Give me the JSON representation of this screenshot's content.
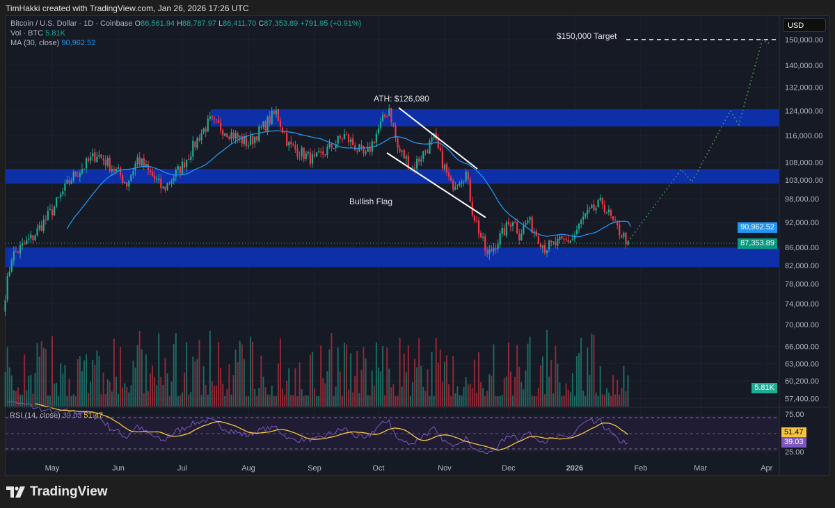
{
  "credit": "TimHakki created with TradingView.com, Jan 26, 2026 17:26 UTC",
  "legend": {
    "symbol": "Bitcoin / U.S. Dollar · 1D · Coinbase",
    "open_label": "O",
    "open": "86,561.94",
    "high_label": "H",
    "high": "88,787.97",
    "low_label": "L",
    "low": "86,411.70",
    "close_label": "C",
    "close": "87,353.89",
    "change": "+791.95 (+0.91%)",
    "vol_label": "Vol · BTC",
    "vol": "5.81K",
    "ma_label": "MA (30, close)",
    "ma": "90,962.52",
    "rsi_label": "RSI (14, close)",
    "rsi": "39.03",
    "rsi_ma": "51.47"
  },
  "currency_button": "USD",
  "price_axis": [
    "150,000.00",
    "140,000.00",
    "132,000.00",
    "124,000.00",
    "116,000.00",
    "108,000.00",
    "103,000.00",
    "98,000.00",
    "92,000.00",
    "86,000.00",
    "82,000.00",
    "78,000.00",
    "74,000.00",
    "70,000.00",
    "66,000.00",
    "63,000.00",
    "60,200.00",
    "57,400.00"
  ],
  "price_axis_values": [
    150000,
    140000,
    132000,
    124000,
    116000,
    108000,
    103000,
    98000,
    92000,
    86000,
    82000,
    78000,
    74000,
    70000,
    66000,
    63000,
    60200,
    57400
  ],
  "rsi_axis": [
    "75.00",
    "25.00"
  ],
  "tags": {
    "ma": "90,962.52",
    "price": "87,353.89",
    "vol": "5.81K",
    "rsi_ma": "51.47",
    "rsi": "39.03"
  },
  "time_axis": [
    "May",
    "Jun",
    "Jul",
    "Aug",
    "Sep",
    "Oct",
    "Nov",
    "Dec",
    "2026",
    "Feb",
    "Mar",
    "Apr"
  ],
  "annotations": {
    "ath": "ATH: $126,080",
    "flag": "Bullish Flag",
    "target": "$150,000 Target"
  },
  "zones": [
    [
      118900,
      124500
    ],
    [
      102000,
      106100
    ],
    [
      81600,
      86000
    ]
  ],
  "colors": {
    "up": "#22ab94",
    "down": "#f23645",
    "ma": "#2196f3",
    "zone": "#0d2fa8",
    "rsi": "#7e57c2",
    "rsi_ma": "#f5c542",
    "projection": "#4caf50"
  },
  "chart_data": {
    "type": "candlestick",
    "scale": "log",
    "ylim": [
      57400,
      152000
    ],
    "price_path": [
      [
        "2025-04-09",
        76000
      ],
      [
        "2025-04-12",
        84000
      ],
      [
        "2025-04-22",
        88500
      ],
      [
        "2025-05-01",
        95000
      ],
      [
        "2025-05-10",
        103500
      ],
      [
        "2025-05-22",
        110500
      ],
      [
        "2025-06-01",
        105000
      ],
      [
        "2025-06-05",
        102000
      ],
      [
        "2025-06-10",
        109000
      ],
      [
        "2025-06-22",
        100500
      ],
      [
        "2025-07-01",
        107000
      ],
      [
        "2025-07-10",
        117000
      ],
      [
        "2025-07-14",
        120500
      ],
      [
        "2025-08-01",
        113500
      ],
      [
        "2025-08-14",
        123500
      ],
      [
        "2025-08-20",
        113000
      ],
      [
        "2025-09-01",
        108500
      ],
      [
        "2025-09-15",
        116000
      ],
      [
        "2025-09-25",
        109500
      ],
      [
        "2025-10-01",
        118000
      ],
      [
        "2025-10-06",
        125000
      ],
      [
        "2025-10-10",
        112000
      ],
      [
        "2025-10-17",
        106500
      ],
      [
        "2025-10-27",
        115000
      ],
      [
        "2025-11-04",
        101500
      ],
      [
        "2025-11-11",
        105000
      ],
      [
        "2025-11-14",
        95000
      ],
      [
        "2025-11-21",
        84000
      ],
      [
        "2025-12-03",
        93000
      ],
      [
        "2025-12-06",
        89000
      ],
      [
        "2025-12-10",
        92500
      ],
      [
        "2025-12-18",
        86000
      ],
      [
        "2025-12-31",
        88000
      ],
      [
        "2026-01-05",
        93000
      ],
      [
        "2026-01-14",
        97000
      ],
      [
        "2026-01-20",
        91000
      ],
      [
        "2026-01-26",
        87353.89
      ]
    ],
    "projection": [
      [
        "2026-01-26",
        87353.89
      ],
      [
        "2026-02-20",
        106000
      ],
      [
        "2026-02-25",
        102500
      ],
      [
        "2026-03-15",
        124000
      ],
      [
        "2026-03-19",
        119500
      ],
      [
        "2026-03-30",
        150000
      ],
      [
        "2026-04-02",
        148500
      ]
    ]
  }
}
